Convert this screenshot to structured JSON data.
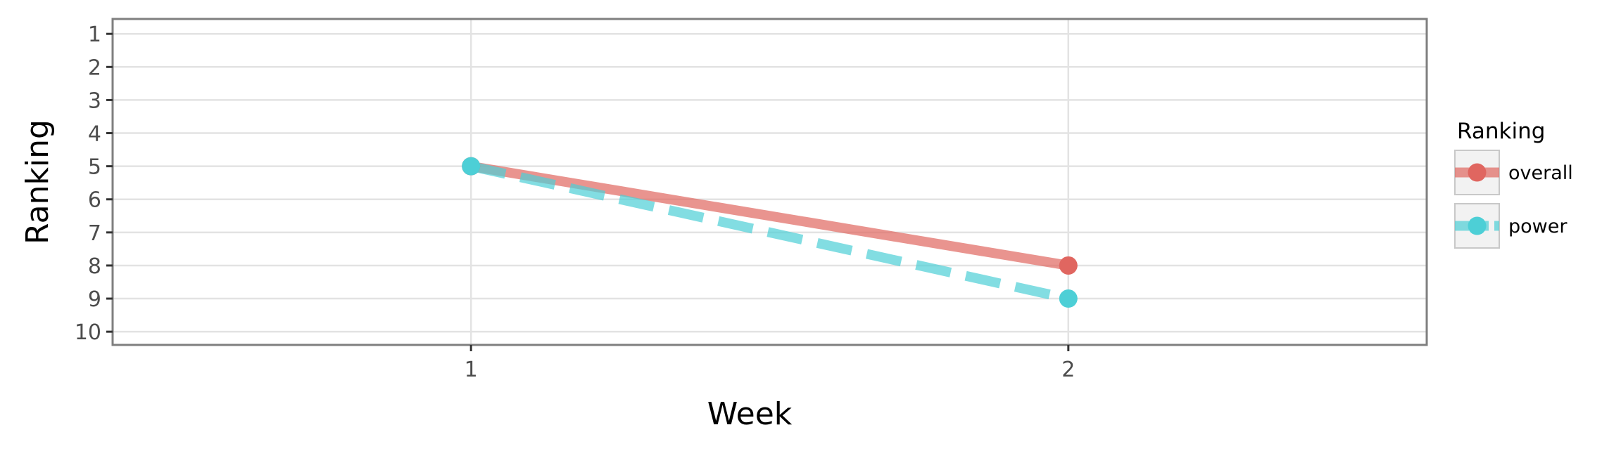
{
  "chart_data": {
    "type": "line",
    "xlabel": "Week",
    "ylabel": "Ranking",
    "x": [
      1,
      2
    ],
    "x_ticks": [
      "1",
      "2"
    ],
    "xlim": [
      0.4,
      2.6
    ],
    "y_ticks": [
      "1",
      "2",
      "3",
      "4",
      "5",
      "6",
      "7",
      "8",
      "9",
      "10"
    ],
    "ylim": [
      10.4,
      0.55
    ],
    "y_reversed": true,
    "grid": true,
    "legend": {
      "title": "Ranking",
      "position": "right"
    },
    "series": [
      {
        "name": "overall",
        "values": [
          5,
          8
        ],
        "color": "#e06660",
        "line_style": "solid",
        "line_alpha": 0.7
      },
      {
        "name": "power",
        "values": [
          5,
          9
        ],
        "color": "#4dcfd6",
        "line_style": "dashed",
        "line_alpha": 0.7
      }
    ]
  }
}
